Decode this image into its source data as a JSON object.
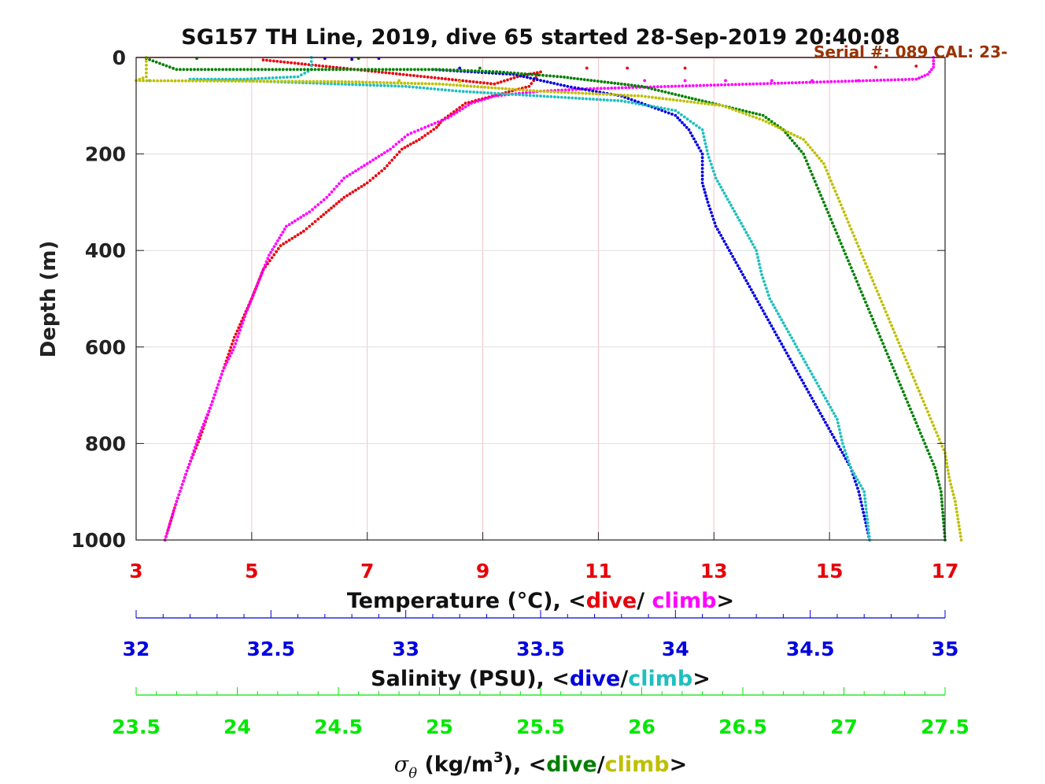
{
  "chart_data": {
    "type": "scatter",
    "title": "SG157 TH Line, 2019, dive 65 started 28-Sep-2019 20:40:08",
    "annotation": "Serial #: 089  CAL: 23-",
    "ylabel": "Depth (m)",
    "ylim": [
      0,
      1000
    ],
    "y_reversed": true,
    "y_ticks": [
      "0",
      "200",
      "400",
      "600",
      "800",
      "1000"
    ],
    "grid": true,
    "colors": {
      "temp_dive": "#e8000b",
      "temp_climb": "#ff00ff",
      "sal_dive": "#0000e0",
      "sal_climb": "#1fbfbf",
      "sig_dive": "#007f00",
      "sig_climb": "#bfbf00",
      "temp_axis": "#e8000b",
      "sal_axis": "#0000e0",
      "sig_axis": "#00e800",
      "annotation": "#993300"
    },
    "axes": [
      {
        "name": "temperature",
        "xlim": [
          3,
          17
        ],
        "ticks": [
          "3",
          "5",
          "7",
          "9",
          "11",
          "13",
          "15",
          "17"
        ],
        "label_prefix": "Temperature (°C), <",
        "label_dive": "dive",
        "label_sep": "/ ",
        "label_climb": "climb",
        "label_suffix": ">"
      },
      {
        "name": "salinity",
        "xlim": [
          32,
          35
        ],
        "ticks": [
          "32",
          "32.5",
          "33",
          "33.5",
          "34",
          "34.5",
          "35"
        ],
        "label_prefix": "Salinity (PSU), <",
        "label_dive": "dive",
        "label_sep": "/",
        "label_climb": "climb",
        "label_suffix": ">"
      },
      {
        "name": "sigma_theta",
        "xlim": [
          23.5,
          27.5
        ],
        "ticks": [
          "23.5",
          "24",
          "24.5",
          "25",
          "25.5",
          "26",
          "26.5",
          "27",
          "27.5"
        ],
        "label_symbol": "σ",
        "label_sub": "θ",
        "label_mid": " (kg/m",
        "label_sup": "3",
        "label_prefix": "), <",
        "label_dive": "dive",
        "label_sep": "/",
        "label_climb": "climb",
        "label_suffix": ">"
      }
    ],
    "series": [
      {
        "name": "Temperature dive",
        "axis": "temperature",
        "color_key": "temp_dive",
        "points": [
          [
            5.2,
            5
          ],
          [
            9.2,
            55
          ],
          [
            9.6,
            40
          ],
          [
            10.0,
            30
          ],
          [
            9.8,
            60
          ],
          [
            8.7,
            95
          ],
          [
            8.3,
            130
          ],
          [
            8.2,
            145
          ],
          [
            7.9,
            170
          ],
          [
            7.6,
            190
          ],
          [
            7.3,
            230
          ],
          [
            7.0,
            260
          ],
          [
            6.6,
            290
          ],
          [
            6.2,
            330
          ],
          [
            5.9,
            360
          ],
          [
            5.5,
            390
          ],
          [
            5.2,
            440
          ],
          [
            5.0,
            500
          ],
          [
            4.7,
            580
          ],
          [
            4.5,
            650
          ],
          [
            4.3,
            720
          ],
          [
            4.1,
            790
          ],
          [
            3.9,
            850
          ],
          [
            3.7,
            920
          ],
          [
            3.6,
            960
          ],
          [
            3.5,
            1000
          ]
        ],
        "scatter": [
          [
            11.5,
            22
          ],
          [
            12.5,
            22
          ],
          [
            15.8,
            20
          ],
          [
            16.5,
            18
          ],
          [
            10.8,
            22
          ]
        ]
      },
      {
        "name": "Temperature climb",
        "axis": "temperature",
        "color_key": "temp_climb",
        "points": [
          [
            16.8,
            0
          ],
          [
            16.8,
            20
          ],
          [
            16.7,
            35
          ],
          [
            16.5,
            45
          ],
          [
            10.8,
            65
          ],
          [
            10.0,
            70
          ],
          [
            9.2,
            80
          ],
          [
            8.8,
            95
          ],
          [
            8.4,
            125
          ],
          [
            8.0,
            145
          ],
          [
            7.7,
            160
          ],
          [
            7.4,
            190
          ],
          [
            7.0,
            220
          ],
          [
            6.6,
            250
          ],
          [
            6.3,
            290
          ],
          [
            6.0,
            320
          ],
          [
            5.6,
            350
          ],
          [
            5.3,
            410
          ],
          [
            5.1,
            470
          ],
          [
            4.9,
            530
          ],
          [
            4.7,
            600
          ],
          [
            4.5,
            650
          ],
          [
            4.3,
            720
          ],
          [
            4.1,
            780
          ],
          [
            3.9,
            850
          ],
          [
            3.7,
            920
          ],
          [
            3.5,
            1000
          ]
        ],
        "scatter": [
          [
            11.8,
            48
          ],
          [
            12.5,
            48
          ],
          [
            13.2,
            48
          ],
          [
            14.0,
            48
          ],
          [
            14.7,
            48
          ],
          [
            15.5,
            48
          ]
        ]
      },
      {
        "name": "Salinity dive",
        "axis": "salinity",
        "color_key": "sal_dive",
        "points": [
          [
            33.1,
            25
          ],
          [
            33.4,
            35
          ],
          [
            33.6,
            60
          ],
          [
            33.8,
            80
          ],
          [
            33.9,
            100
          ],
          [
            34.0,
            120
          ],
          [
            34.05,
            150
          ],
          [
            34.1,
            200
          ],
          [
            34.1,
            260
          ],
          [
            34.12,
            300
          ],
          [
            34.15,
            350
          ],
          [
            34.2,
            400
          ],
          [
            34.25,
            450
          ],
          [
            34.3,
            500
          ],
          [
            34.35,
            550
          ],
          [
            34.4,
            600
          ],
          [
            34.45,
            650
          ],
          [
            34.5,
            700
          ],
          [
            34.55,
            750
          ],
          [
            34.6,
            800
          ],
          [
            34.65,
            850
          ],
          [
            34.68,
            900
          ],
          [
            34.7,
            950
          ],
          [
            34.72,
            1000
          ]
        ],
        "scatter": [
          [
            32.7,
            2
          ],
          [
            32.8,
            4
          ],
          [
            32.9,
            2
          ],
          [
            33.2,
            22
          ]
        ]
      },
      {
        "name": "Salinity climb",
        "axis": "salinity",
        "color_key": "sal_climb",
        "points": [
          [
            32.65,
            0
          ],
          [
            32.65,
            25
          ],
          [
            32.6,
            40
          ],
          [
            32.4,
            45
          ],
          [
            32.2,
            45
          ],
          [
            32.5,
            50
          ],
          [
            33.0,
            60
          ],
          [
            33.2,
            70
          ],
          [
            33.5,
            80
          ],
          [
            33.8,
            90
          ],
          [
            34.0,
            110
          ],
          [
            34.1,
            150
          ],
          [
            34.12,
            200
          ],
          [
            34.15,
            250
          ],
          [
            34.2,
            300
          ],
          [
            34.25,
            350
          ],
          [
            34.3,
            400
          ],
          [
            34.32,
            450
          ],
          [
            34.35,
            500
          ],
          [
            34.4,
            550
          ],
          [
            34.45,
            600
          ],
          [
            34.5,
            650
          ],
          [
            34.55,
            700
          ],
          [
            34.6,
            750
          ],
          [
            34.62,
            800
          ],
          [
            34.65,
            850
          ],
          [
            34.7,
            900
          ],
          [
            34.72,
            1000
          ]
        ],
        "scatter": [
          [
            32.05,
            48
          ]
        ]
      },
      {
        "name": "Sigma-theta dive",
        "axis": "sigma_theta",
        "color_key": "sig_dive",
        "points": [
          [
            23.55,
            2
          ],
          [
            23.7,
            25
          ],
          [
            25.0,
            25
          ],
          [
            25.3,
            30
          ],
          [
            25.6,
            40
          ],
          [
            25.8,
            50
          ],
          [
            26.0,
            60
          ],
          [
            26.2,
            80
          ],
          [
            26.4,
            100
          ],
          [
            26.6,
            120
          ],
          [
            26.7,
            150
          ],
          [
            26.8,
            200
          ],
          [
            26.85,
            250
          ],
          [
            26.9,
            300
          ],
          [
            26.95,
            350
          ],
          [
            27.0,
            400
          ],
          [
            27.05,
            450
          ],
          [
            27.1,
            500
          ],
          [
            27.15,
            550
          ],
          [
            27.2,
            600
          ],
          [
            27.25,
            650
          ],
          [
            27.3,
            700
          ],
          [
            27.35,
            750
          ],
          [
            27.4,
            800
          ],
          [
            27.45,
            850
          ],
          [
            27.48,
            900
          ],
          [
            27.5,
            1000
          ]
        ],
        "scatter": [
          [
            23.8,
            2
          ],
          [
            24.6,
            2
          ],
          [
            25.2,
            22
          ]
        ]
      },
      {
        "name": "Sigma-theta climb",
        "axis": "sigma_theta",
        "color_key": "sig_climb",
        "points": [
          [
            23.55,
            0
          ],
          [
            23.55,
            40
          ],
          [
            23.5,
            48
          ],
          [
            24.5,
            50
          ],
          [
            25.0,
            55
          ],
          [
            25.5,
            70
          ],
          [
            26.0,
            80
          ],
          [
            26.4,
            100
          ],
          [
            26.6,
            130
          ],
          [
            26.8,
            170
          ],
          [
            26.9,
            220
          ],
          [
            26.95,
            270
          ],
          [
            27.0,
            320
          ],
          [
            27.05,
            370
          ],
          [
            27.1,
            420
          ],
          [
            27.15,
            470
          ],
          [
            27.2,
            520
          ],
          [
            27.25,
            570
          ],
          [
            27.3,
            620
          ],
          [
            27.35,
            670
          ],
          [
            27.4,
            720
          ],
          [
            27.45,
            770
          ],
          [
            27.5,
            820
          ],
          [
            27.52,
            870
          ],
          [
            27.55,
            920
          ],
          [
            27.58,
            1000
          ]
        ],
        "scatter": [
          [
            24.8,
            48
          ],
          [
            25.1,
            50
          ]
        ]
      }
    ]
  }
}
